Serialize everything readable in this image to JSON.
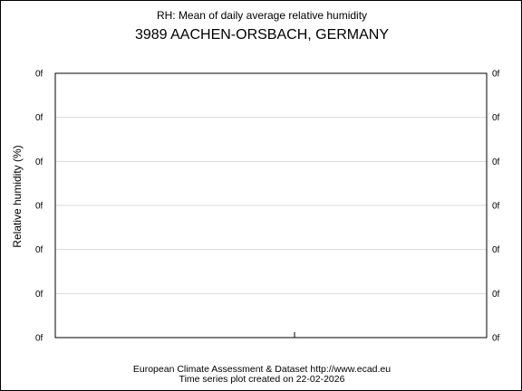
{
  "header": {
    "title": "RH: Mean of daily average relative humidity",
    "station": "3989 AACHEN-ORSBACH, GERMANY"
  },
  "footer": {
    "line1": "European Climate Assessment & Dataset  http://www.ecad.eu",
    "line2": "Time series plot created on 22-02-2026"
  },
  "chart_data": {
    "type": "line",
    "title": "RH: Mean of daily average relative humidity",
    "subtitle": "3989 AACHEN-ORSBACH, GERMANY",
    "ylabel": "Relative humidity (%)",
    "xlabel": "",
    "y_tick_labels": [
      "0f",
      "0f",
      "0f",
      "0f",
      "0f",
      "0f",
      "0f"
    ],
    "series": [],
    "grid": true,
    "colors": {
      "grid": "#d9d9d9",
      "axis": "#000000",
      "background": "#ffffff"
    }
  }
}
